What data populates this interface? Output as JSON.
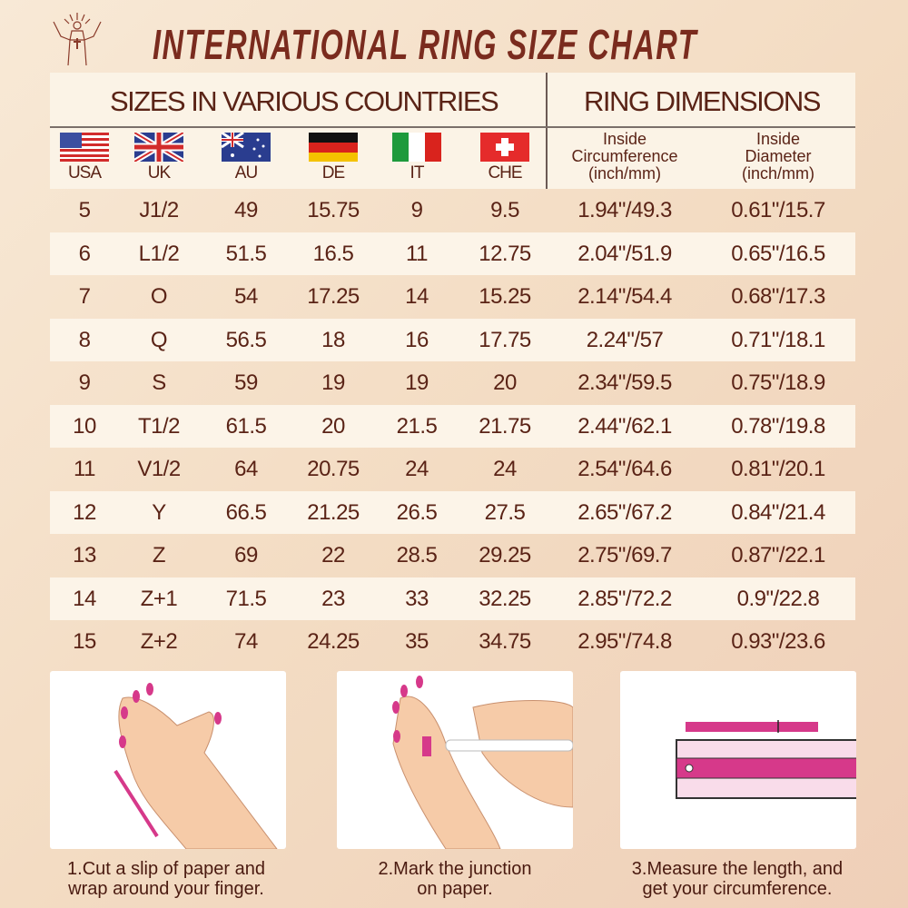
{
  "title": "INTERNATIONAL RING SIZE CHART",
  "logo": {
    "icon": "figure-with-cross-logo"
  },
  "header": {
    "sizes_title": "SIZES IN VARIOUS COUNTRIES",
    "dimensions_title": "RING DIMENSIONS",
    "countries": [
      {
        "code": "USA",
        "flag": "usa-flag"
      },
      {
        "code": "UK",
        "flag": "uk-flag"
      },
      {
        "code": "AU",
        "flag": "au-flag"
      },
      {
        "code": "DE",
        "flag": "de-flag"
      },
      {
        "code": "IT",
        "flag": "it-flag"
      },
      {
        "code": "CHE",
        "flag": "che-flag"
      }
    ],
    "circumference": [
      "Inside",
      "Circumference",
      "(inch/mm)"
    ],
    "diameter": [
      "Inside",
      "Diameter",
      "(inch/mm)"
    ]
  },
  "rows": [
    [
      "5",
      "J1/2",
      "49",
      "15.75",
      "9",
      "9.5",
      "1.94\"/49.3",
      "0.61\"/15.7"
    ],
    [
      "6",
      "L1/2",
      "51.5",
      "16.5",
      "11",
      "12.75",
      "2.04\"/51.9",
      "0.65\"/16.5"
    ],
    [
      "7",
      "O",
      "54",
      "17.25",
      "14",
      "15.25",
      "2.14\"/54.4",
      "0.68\"/17.3"
    ],
    [
      "8",
      "Q",
      "56.5",
      "18",
      "16",
      "17.75",
      "2.24\"/57",
      "0.71\"/18.1"
    ],
    [
      "9",
      "S",
      "59",
      "19",
      "19",
      "20",
      "2.34\"/59.5",
      "0.75\"/18.9"
    ],
    [
      "10",
      "T1/2",
      "61.5",
      "20",
      "21.5",
      "21.75",
      "2.44\"/62.1",
      "0.78\"/19.8"
    ],
    [
      "11",
      "V1/2",
      "64",
      "20.75",
      "24",
      "24",
      "2.54\"/64.6",
      "0.81\"/20.1"
    ],
    [
      "12",
      "Y",
      "66.5",
      "21.25",
      "26.5",
      "27.5",
      "2.65\"/67.2",
      "0.84\"/21.4"
    ],
    [
      "13",
      "Z",
      "69",
      "22",
      "28.5",
      "29.25",
      "2.75\"/69.7",
      "0.87\"/22.1"
    ],
    [
      "14",
      "Z+1",
      "71.5",
      "23",
      "33",
      "32.25",
      "2.85\"/72.2",
      "0.9\"/22.8"
    ],
    [
      "15",
      "Z+2",
      "74",
      "24.25",
      "35",
      "34.75",
      "2.95\"/74.8",
      "0.93\"/23.6"
    ]
  ],
  "steps": [
    {
      "line1": "1.Cut a slip of paper and",
      "line2": "wrap around your finger."
    },
    {
      "line1": "2.Mark the junction",
      "line2": "on paper."
    },
    {
      "line1": "3.Measure the length, and",
      "line2": "get your circumference."
    }
  ],
  "colors": {
    "text": "#5a2316",
    "title": "#7a2b1e",
    "accent_pink": "#d6398a",
    "skin": "#f6cba8"
  }
}
